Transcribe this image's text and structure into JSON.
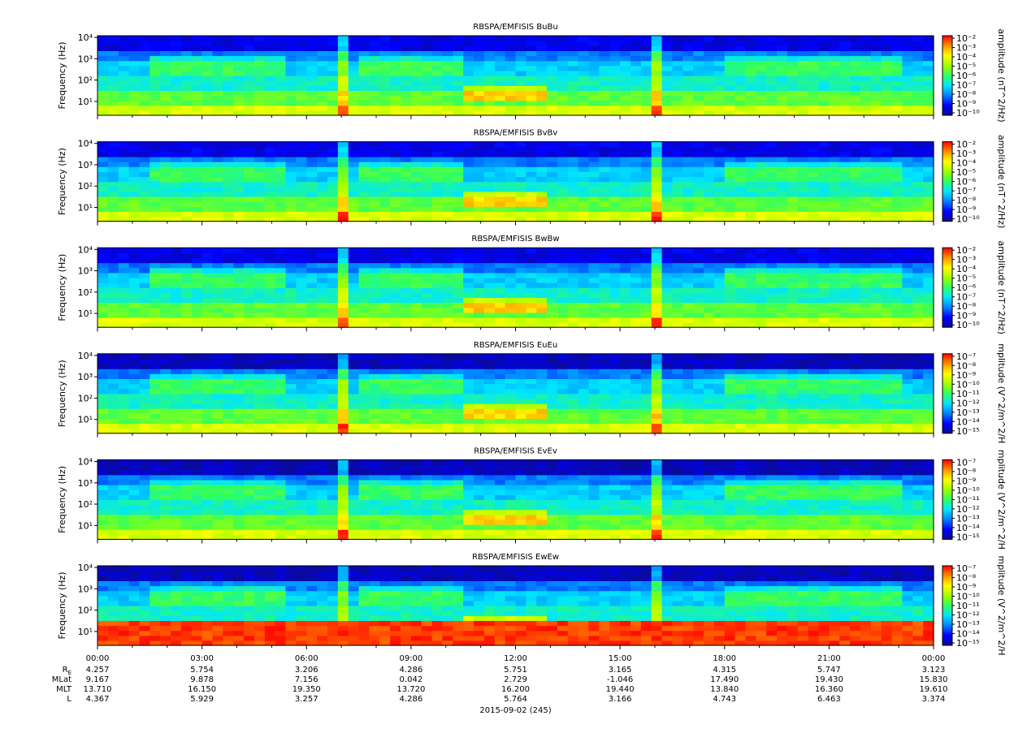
{
  "colors": {
    "spectrogram_scale": [
      "#0b0b8f",
      "#0000ff",
      "#0080ff",
      "#00e5ff",
      "#30ff60",
      "#a0ff00",
      "#ffff00",
      "#ff9000",
      "#ff0000"
    ],
    "background": "#ffffff",
    "axis": "#000000"
  },
  "chart_data": [
    {
      "type": "heatmap",
      "title": "RBSPA/EMFISIS  BuBu",
      "ylabel": "Frequency (Hz)",
      "yscale": "log",
      "y_ticks": [
        "10¹",
        "10²",
        "10³",
        "10⁴"
      ],
      "colorbar_label": "amplitude (nT^2/Hz)",
      "colorbar_ticks": [
        "10⁻²",
        "10⁻³",
        "10⁻⁴",
        "10⁻⁵",
        "10⁻⁶",
        "10⁻⁷",
        "10⁻⁸",
        "10⁻⁹",
        "10⁻¹⁰"
      ],
      "colorbar_range": [
        -10,
        -2
      ],
      "kind": "B"
    },
    {
      "type": "heatmap",
      "title": "RBSPA/EMFISIS  BvBv",
      "ylabel": "Frequency (Hz)",
      "yscale": "log",
      "y_ticks": [
        "10¹",
        "10²",
        "10³",
        "10⁴"
      ],
      "colorbar_label": "amplitude (nT^2/Hz)",
      "colorbar_ticks": [
        "10⁻²",
        "10⁻³",
        "10⁻⁴",
        "10⁻⁵",
        "10⁻⁶",
        "10⁻⁷",
        "10⁻⁸",
        "10⁻⁹",
        "10⁻¹⁰"
      ],
      "colorbar_range": [
        -10,
        -2
      ],
      "kind": "B"
    },
    {
      "type": "heatmap",
      "title": "RBSPA/EMFISIS  BwBw",
      "ylabel": "Frequency (Hz)",
      "yscale": "log",
      "y_ticks": [
        "10¹",
        "10²",
        "10³",
        "10⁴"
      ],
      "colorbar_label": "amplitude (nT^2/Hz)",
      "colorbar_ticks": [
        "10⁻²",
        "10⁻³",
        "10⁻⁴",
        "10⁻⁵",
        "10⁻⁶",
        "10⁻⁷",
        "10⁻⁸",
        "10⁻⁹",
        "10⁻¹⁰"
      ],
      "colorbar_range": [
        -10,
        -2
      ],
      "kind": "B"
    },
    {
      "type": "heatmap",
      "title": "RBSPA/EMFISIS  EuEu",
      "ylabel": "Frequency (Hz)",
      "yscale": "log",
      "y_ticks": [
        "10¹",
        "10²",
        "10³",
        "10⁴"
      ],
      "colorbar_label": "mplitude (V^2/m^2/H",
      "colorbar_ticks": [
        "10⁻⁷",
        "10⁻⁸",
        "10⁻⁹",
        "10⁻¹⁰",
        "10⁻¹¹",
        "10⁻¹²",
        "10⁻¹³",
        "10⁻¹⁴",
        "10⁻¹⁵"
      ],
      "colorbar_range": [
        -15,
        -7
      ],
      "kind": "E"
    },
    {
      "type": "heatmap",
      "title": "RBSPA/EMFISIS  EvEv",
      "ylabel": "Frequency (Hz)",
      "yscale": "log",
      "y_ticks": [
        "10¹",
        "10²",
        "10³",
        "10⁴"
      ],
      "colorbar_label": "mplitude (V^2/m^2/H",
      "colorbar_ticks": [
        "10⁻⁷",
        "10⁻⁸",
        "10⁻⁹",
        "10⁻¹⁰",
        "10⁻¹¹",
        "10⁻¹²",
        "10⁻¹³",
        "10⁻¹⁴",
        "10⁻¹⁵"
      ],
      "colorbar_range": [
        -15,
        -7
      ],
      "kind": "E"
    },
    {
      "type": "heatmap",
      "title": "RBSPA/EMFISIS  EwEw",
      "ylabel": "Frequency (Hz)",
      "yscale": "log",
      "y_ticks": [
        "10¹",
        "10²",
        "10³",
        "10⁴"
      ],
      "colorbar_label": "mplitude (V^2/m^2/H",
      "colorbar_ticks": [
        "10⁻⁷",
        "10⁻⁸",
        "10⁻⁹",
        "10⁻¹⁰",
        "10⁻¹¹",
        "10⁻¹²",
        "10⁻¹³",
        "10⁻¹⁴",
        "10⁻¹⁵"
      ],
      "colorbar_range": [
        -15,
        -7
      ],
      "kind": "Ew"
    }
  ],
  "x_axis": {
    "times": [
      "00:00",
      "03:00",
      "06:00",
      "09:00",
      "12:00",
      "15:00",
      "18:00",
      "21:00",
      "00:00"
    ],
    "date_label": "2015-09-02 (245)"
  },
  "ephemeris": [
    {
      "label": "R",
      "subscript": "E",
      "values": [
        "4.257",
        "5.754",
        "3.206",
        "4.286",
        "5.751",
        "3.165",
        "4.315",
        "5.747",
        "3.123"
      ]
    },
    {
      "label": "MLat",
      "subscript": "",
      "values": [
        "9.167",
        "9.878",
        "7.156",
        "0.042",
        "2.729",
        "-1.046",
        "17.490",
        "19.430",
        "15.830"
      ]
    },
    {
      "label": "MLT",
      "subscript": "",
      "values": [
        "13.710",
        "16.150",
        "19.350",
        "13.720",
        "16.200",
        "19.440",
        "13.840",
        "16.360",
        "19.610"
      ]
    },
    {
      "label": "L",
      "subscript": "",
      "values": [
        "4.367",
        "5.929",
        "3.257",
        "4.286",
        "5.764",
        "3.166",
        "4.743",
        "6.463",
        "3.374"
      ]
    }
  ]
}
